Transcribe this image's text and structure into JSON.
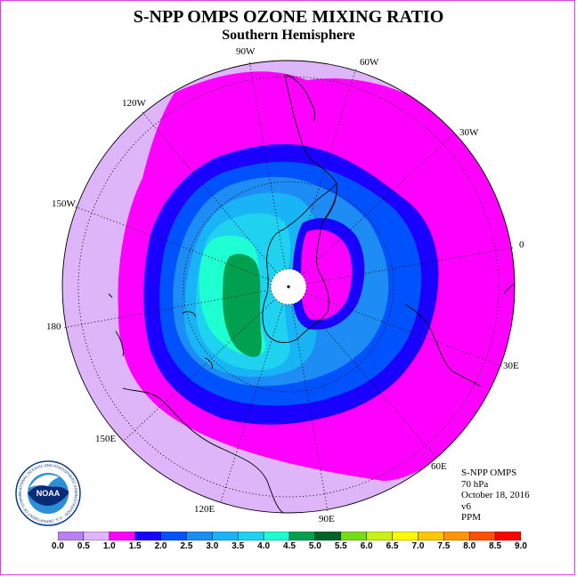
{
  "title": "S-NPP OMPS OZONE MIXING RATIO",
  "subtitle": "Southern Hemisphere",
  "longitude_labels": {
    "w90": "90W",
    "w60": "60W",
    "w30": "30W",
    "e0": "0",
    "e30": "30E",
    "e60": "60E",
    "e90": "90E",
    "e120": "120E",
    "e150": "150E",
    "lon180": "180",
    "w150": "150W",
    "w120": "120W"
  },
  "info": {
    "instrument": "S-NPP OMPS",
    "level": "70 hPa",
    "date": "October 18, 2016",
    "version": "v6",
    "units": "PPM"
  },
  "colorbar": {
    "labels": [
      "0.0",
      "0.5",
      "1.0",
      "1.5",
      "2.0",
      "2.5",
      "3.0",
      "3.5",
      "4.0",
      "4.5",
      "5.0",
      "5.5",
      "6.0",
      "6.5",
      "7.0",
      "7.5",
      "8.0",
      "8.5",
      "9.0"
    ],
    "colors": [
      "#b981f0",
      "#deb5f8",
      "#ff00ff",
      "#1a00ff",
      "#0052ff",
      "#1e8cf5",
      "#19b4f6",
      "#1ed2f0",
      "#1effd2",
      "#00a050",
      "#006428",
      "#78dc14",
      "#c8f014",
      "#fffa00",
      "#ffc800",
      "#ff9600",
      "#ff5000",
      "#ff0000",
      "#8c5a3c"
    ]
  },
  "logo": {
    "text": "NOAA",
    "ring_text": "NATIONAL OCEANIC AND ATMOSPHERIC ADMINISTRATION · U.S. DEPARTMENT OF COMMERCE"
  }
}
